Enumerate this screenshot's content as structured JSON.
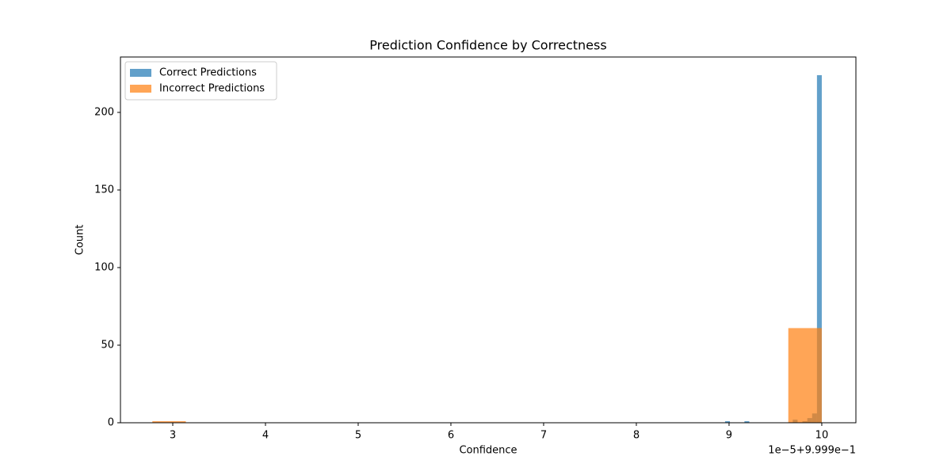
{
  "chart_data": {
    "type": "histogram",
    "title": "Prediction Confidence by Correctness",
    "x_label": "Confidence",
    "y_label": "Count",
    "x_offset_label": "1e−5+9.999e−1",
    "xlim": [
      2.436,
      10.368
    ],
    "ylim": [
      0,
      235.7
    ],
    "xticks": [
      3,
      4,
      5,
      6,
      7,
      8,
      9,
      10
    ],
    "yticks": [
      0,
      50,
      100,
      150,
      200
    ],
    "legend": "upper left",
    "grid": false,
    "series": [
      {
        "name": "Correct Predictions",
        "color": "#1f77b4",
        "opacity": 0.7,
        "bins": [
          8.957,
          9.009,
          9.061,
          9.113,
          9.166,
          9.218,
          9.27,
          9.322,
          9.374,
          9.426,
          9.478,
          9.531,
          9.583,
          9.635,
          9.687,
          9.739,
          9.791,
          9.844,
          9.896,
          9.948,
          10
        ],
        "values": [
          1,
          0,
          0,
          0,
          1,
          0,
          0,
          0,
          0,
          0,
          0,
          0,
          0,
          0,
          2,
          0,
          1,
          3,
          6,
          224
        ]
      },
      {
        "name": "Incorrect Predictions",
        "color": "#ff7f0e",
        "opacity": 0.7,
        "bins": [
          2.78,
          3.141,
          3.502,
          3.863,
          4.224,
          4.585,
          4.946,
          5.307,
          5.668,
          6.029,
          6.39,
          6.751,
          7.112,
          7.473,
          7.834,
          8.195,
          8.556,
          8.917,
          9.278,
          9.639,
          10
        ],
        "values": [
          1,
          0,
          0,
          0,
          0,
          0,
          0,
          0,
          0,
          0,
          0,
          0,
          0,
          0,
          0,
          0,
          0,
          0,
          0,
          61
        ]
      }
    ]
  }
}
